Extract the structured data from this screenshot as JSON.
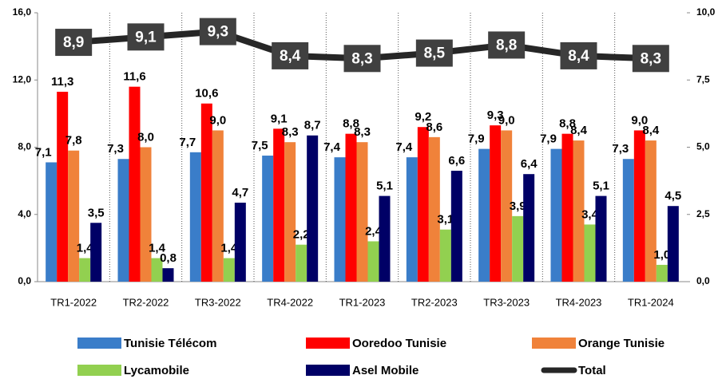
{
  "chart_data": {
    "type": "bar",
    "categories": [
      "TR1-2022",
      "TR2-2022",
      "TR3-2022",
      "TR4-2022",
      "TR1-2023",
      "TR2-2023",
      "TR3-2023",
      "TR4-2023",
      "TR1-2024"
    ],
    "ylim": [
      0,
      16
    ],
    "yticks": [
      {
        "value": 0,
        "label": "0,0"
      },
      {
        "value": 4,
        "label": "4,0"
      },
      {
        "value": 8,
        "label": "8,0"
      },
      {
        "value": 12,
        "label": "12,0"
      },
      {
        "value": 16,
        "label": "16,0"
      }
    ],
    "y2lim": [
      0,
      10
    ],
    "y2ticks": [
      {
        "value": 0,
        "label": "0,0"
      },
      {
        "value": 2.5,
        "label": "2,5"
      },
      {
        "value": 5,
        "label": "5,0"
      },
      {
        "value": 7.5,
        "label": "7,5"
      },
      {
        "value": 10,
        "label": "10,0"
      }
    ],
    "series": [
      {
        "name": "Tunisie Télécom",
        "color": "#3a7dc9",
        "values": [
          7.1,
          7.3,
          7.7,
          7.5,
          7.4,
          7.4,
          7.9,
          7.9,
          7.3
        ],
        "value_labels": [
          "7,1",
          "7,3",
          "7,7",
          "7,5",
          "7,4",
          "7,4",
          "7,9",
          "7,9",
          "7,3"
        ]
      },
      {
        "name": "Ooredoo Tunisie",
        "color": "#ff0000",
        "values": [
          11.3,
          11.6,
          10.6,
          9.1,
          8.8,
          9.2,
          9.3,
          8.8,
          9.0
        ],
        "value_labels": [
          "11,3",
          "11,6",
          "10,6",
          "9,1",
          "8,8",
          "9,2",
          "9,3",
          "8,8",
          "9,0"
        ]
      },
      {
        "name": "Orange Tunisie",
        "color": "#f0823a",
        "values": [
          7.8,
          8.0,
          9.0,
          8.3,
          8.3,
          8.6,
          9.0,
          8.4,
          8.4
        ],
        "value_labels": [
          "7,8",
          "8,0",
          "9,0",
          "8,3",
          "8,3",
          "8,6",
          "9,0",
          "8,4",
          "8,4"
        ]
      },
      {
        "name": "Lycamobile",
        "color": "#92d050",
        "values": [
          1.4,
          1.4,
          1.4,
          2.2,
          2.4,
          3.1,
          3.9,
          3.4,
          1.0
        ],
        "value_labels": [
          "1,4",
          "1,4",
          "1,4",
          "2,2",
          "2,4",
          "3,1",
          "3,9",
          "3,4",
          "1,0"
        ]
      },
      {
        "name": "Asel Mobile",
        "color": "#000066",
        "values": [
          3.5,
          0.8,
          4.7,
          8.7,
          5.1,
          6.6,
          6.4,
          5.1,
          4.5
        ],
        "value_labels": [
          "3,5",
          "0,8",
          "4,7",
          "8,7",
          "5,1",
          "6,6",
          "6,4",
          "5,1",
          "4,5"
        ]
      },
      {
        "name": "Total",
        "color": "#262626",
        "type": "line",
        "axis": "y2",
        "values": [
          8.9,
          9.1,
          9.3,
          8.4,
          8.3,
          8.5,
          8.8,
          8.4,
          8.3
        ],
        "value_labels": [
          "8,9",
          "9,1",
          "9,3",
          "8,4",
          "8,3",
          "8,5",
          "8,8",
          "8,4",
          "8,3"
        ]
      }
    ],
    "legend": "bottom"
  }
}
